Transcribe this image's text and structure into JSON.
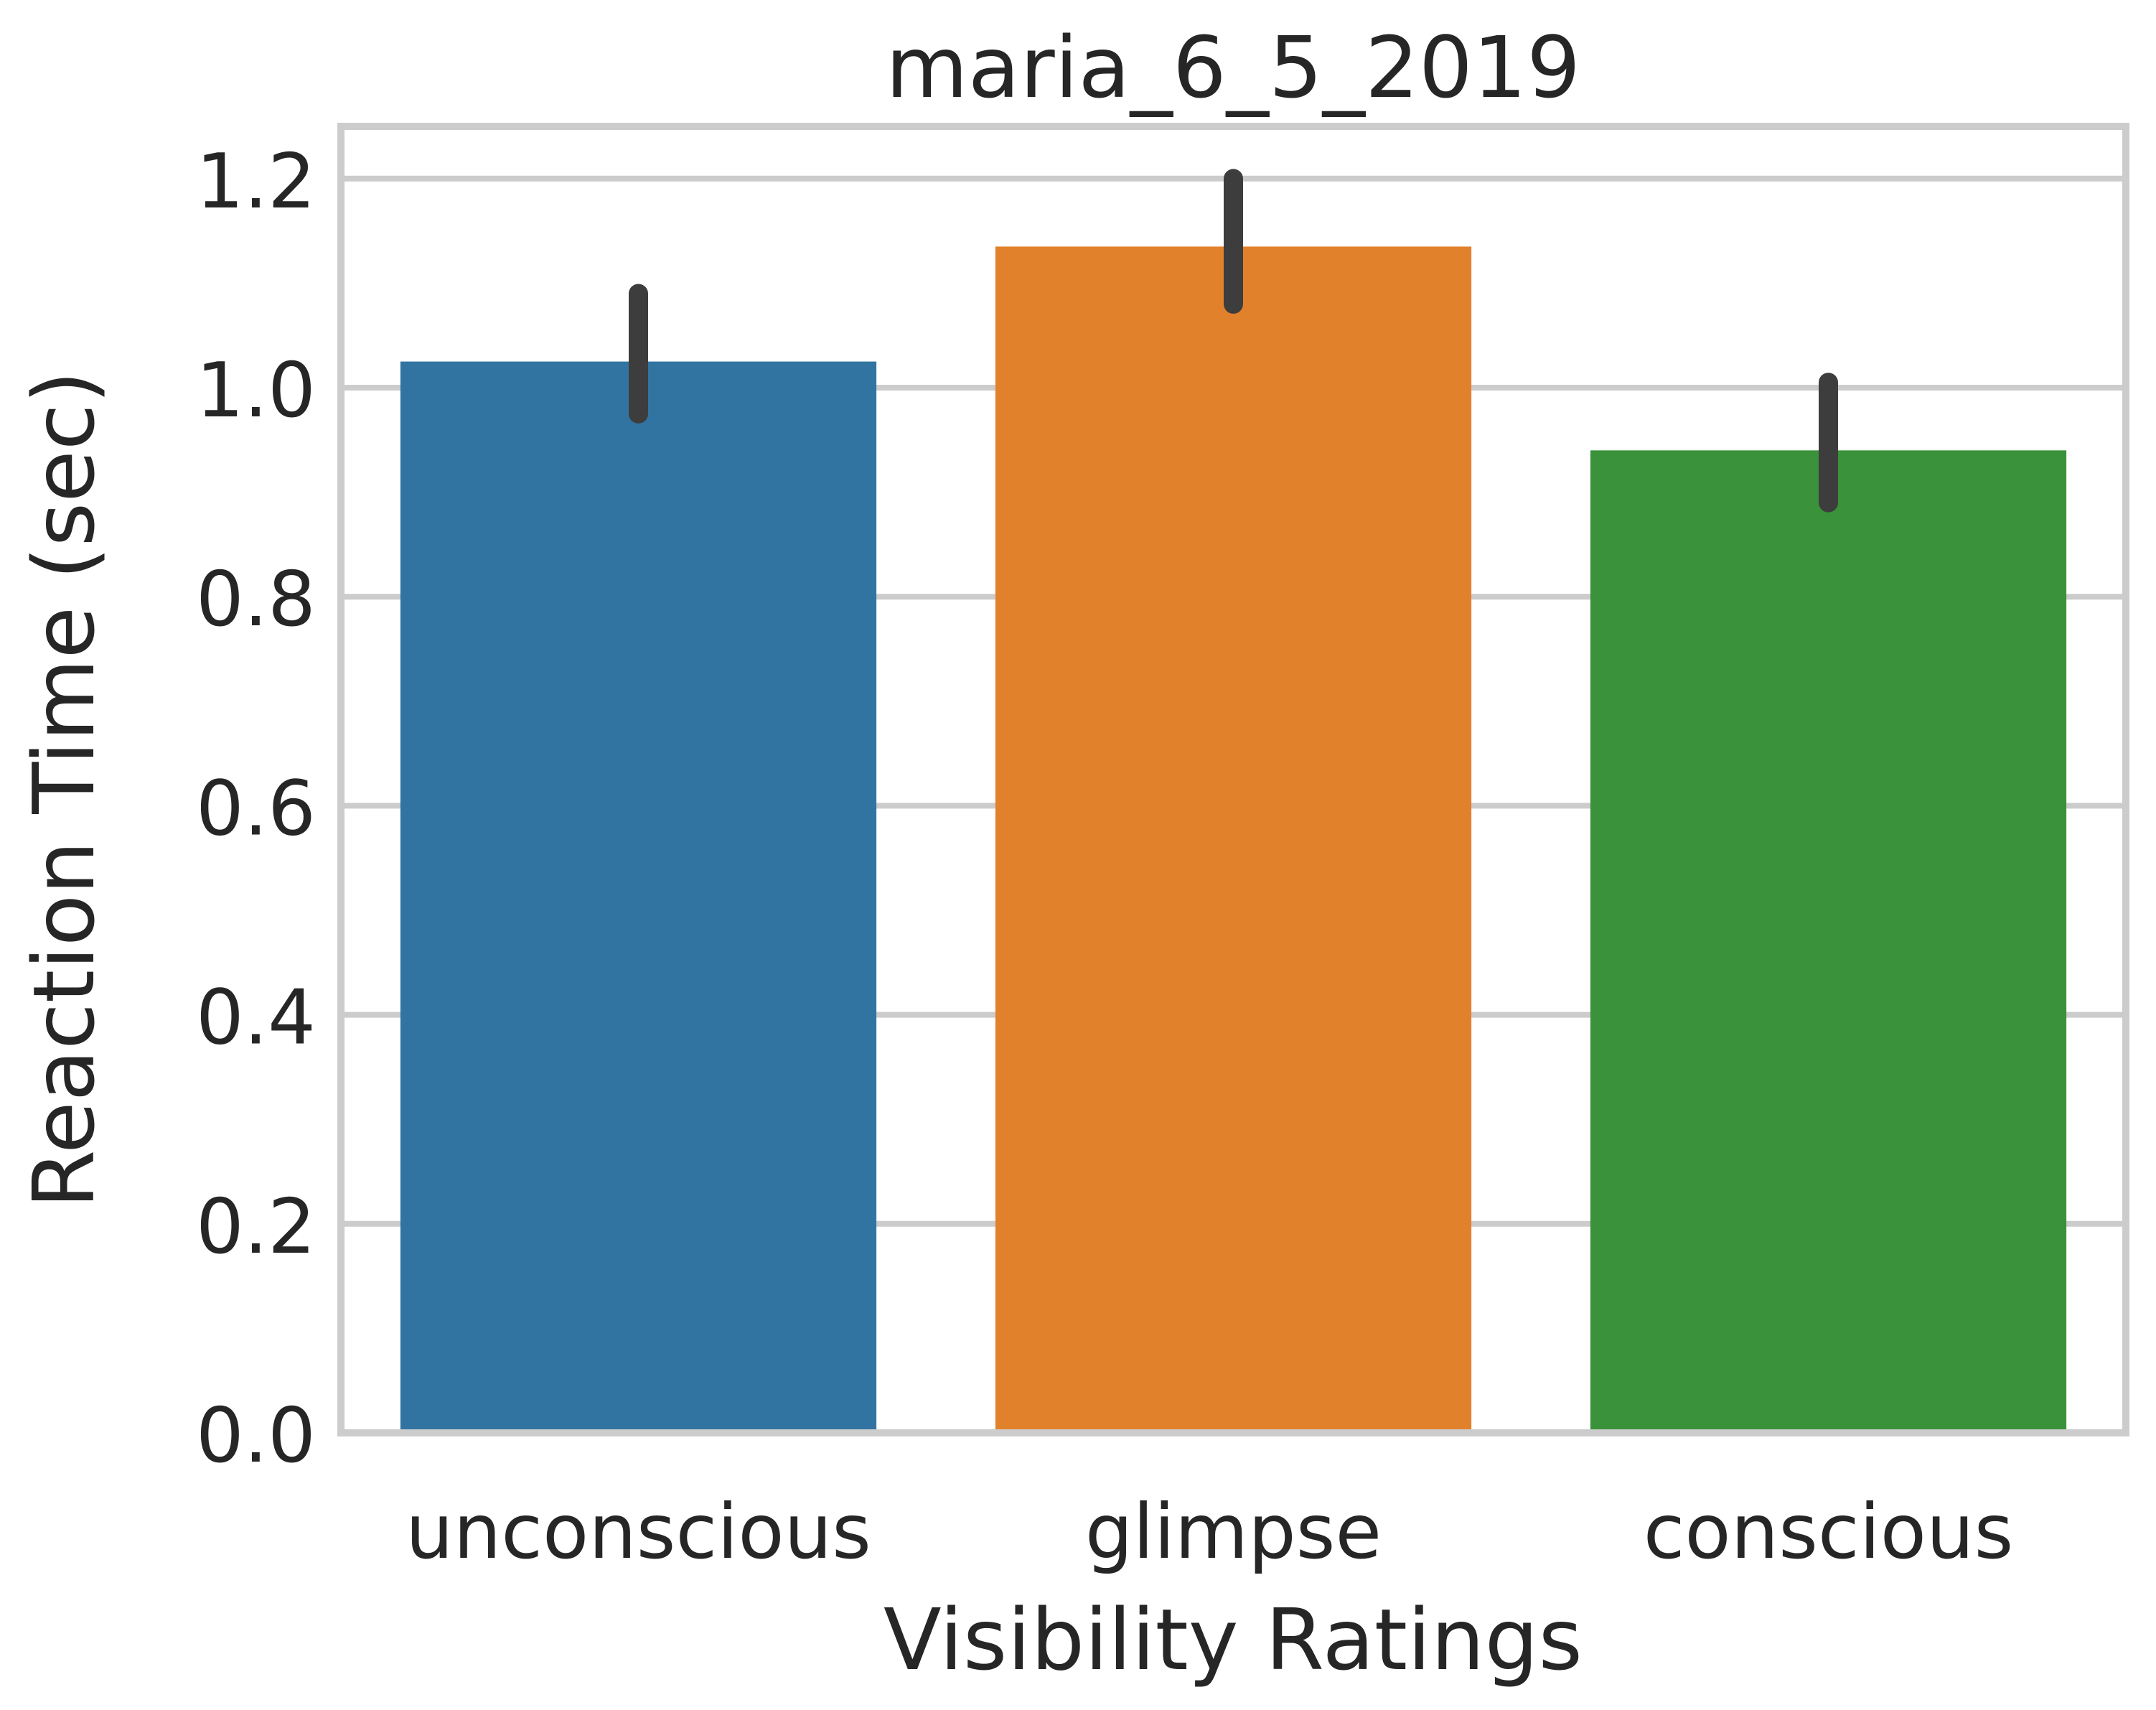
{
  "chart_data": {
    "type": "bar",
    "title": "maria_6_5_2019",
    "xlabel": "Visibility Ratings",
    "ylabel": "Reaction Time (sec)",
    "categories": [
      "unconscious",
      "glimpse",
      "conscious"
    ],
    "values": [
      1.025,
      1.135,
      0.94
    ],
    "error_low": [
      0.975,
      1.08,
      0.89
    ],
    "error_high": [
      1.09,
      1.2,
      1.005
    ],
    "colors": [
      "#3274a1",
      "#e1812c",
      "#3a923a"
    ],
    "error_color": "#3d3d3d",
    "ylim": [
      0,
      1.25
    ],
    "yticks": [
      0.0,
      0.2,
      0.4,
      0.6,
      0.8,
      1.0,
      1.2
    ],
    "ytick_labels": [
      "0.0",
      "0.2",
      "0.4",
      "0.6",
      "0.8",
      "1.0",
      "1.2"
    ],
    "grid": "y",
    "grid_color": "#cccccc",
    "frame_color": "#cccccc"
  }
}
